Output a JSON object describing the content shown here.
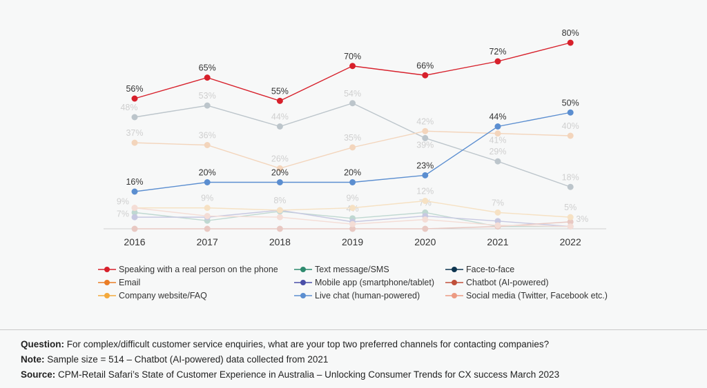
{
  "chart_data": {
    "type": "line",
    "x": [
      "2016",
      "2017",
      "2018",
      "2019",
      "2020",
      "2021",
      "2022"
    ],
    "ylim": [
      0,
      80
    ],
    "grid": false,
    "legend_placement": "bottom",
    "series": [
      {
        "name": "Speaking with a real person on the phone",
        "color": "#d7202b",
        "faded": false,
        "values": [
          56,
          65,
          55,
          70,
          66,
          72,
          80
        ],
        "labels": [
          "56%",
          "65%",
          "55%",
          "70%",
          "66%",
          "72%",
          "80%"
        ]
      },
      {
        "name": "Text message/SMS",
        "color": "#2e8a6e",
        "faded": true,
        "values": [
          7,
          3.5,
          7.5,
          4.5,
          7,
          1,
          1
        ],
        "labels": [
          "7%",
          null,
          null,
          "4%",
          "7%",
          null,
          null
        ]
      },
      {
        "name": "Face-to-face",
        "color": "#0e3550",
        "faded": true,
        "values": [
          48,
          53,
          44,
          54,
          39,
          29,
          18
        ],
        "labels": [
          "48%",
          "53%",
          "44%",
          "54%",
          "39%",
          "29%",
          "18%"
        ]
      },
      {
        "name": "Email",
        "color": "#ea7d26",
        "faded": true,
        "values": [
          37,
          36,
          26,
          35,
          42,
          41,
          40
        ],
        "labels": [
          "37%",
          "36%",
          "26%",
          "35%",
          "42%",
          "41%",
          "40%"
        ]
      },
      {
        "name": "Mobile app (smartphone/tablet)",
        "color": "#4a4fa8",
        "faded": true,
        "values": [
          5,
          5,
          8,
          3,
          5.5,
          3.3,
          1
        ],
        "labels": [
          null,
          null,
          null,
          null,
          null,
          null,
          null
        ]
      },
      {
        "name": "Chatbot (AI-powered)",
        "color": "#c0503a",
        "faded": true,
        "values": [
          0,
          0,
          0,
          0,
          0,
          1,
          3
        ],
        "labels": [
          null,
          null,
          null,
          null,
          null,
          null,
          "3%"
        ]
      },
      {
        "name": "Company website/FAQ",
        "color": "#f4a93c",
        "faded": true,
        "values": [
          9,
          9,
          8,
          9,
          12,
          7,
          5
        ],
        "labels": [
          "9%",
          "9%",
          "8%",
          "9%",
          "12%",
          "7%",
          "5%"
        ]
      },
      {
        "name": "Live chat (human-powered)",
        "color": "#5b8ed0",
        "faded": false,
        "values": [
          16,
          20,
          20,
          20,
          23,
          44,
          50
        ],
        "labels": [
          "16%",
          "20%",
          "20%",
          "20%",
          "23%",
          "44%",
          "50%"
        ]
      },
      {
        "name": "Social media (Twitter, Facebook etc.)",
        "color": "#ec9a82",
        "faded": true,
        "values": [
          9,
          5.5,
          5,
          2,
          4,
          1.5,
          1
        ],
        "labels": [
          null,
          null,
          null,
          null,
          null,
          null,
          null
        ]
      }
    ]
  },
  "notes": {
    "question_label": "Question:",
    "question": " For complex/difficult customer service enquiries, what are your top two preferred channels for contacting companies?",
    "note_label": "Note:",
    "note": " Sample size = 514 – Chatbot (AI-powered) data collected from 2021",
    "source_label": "Source:",
    "source": " CPM-Retail Safari’s State of Customer Experience in Australia – Unlocking Consumer Trends for CX success March 2023"
  }
}
